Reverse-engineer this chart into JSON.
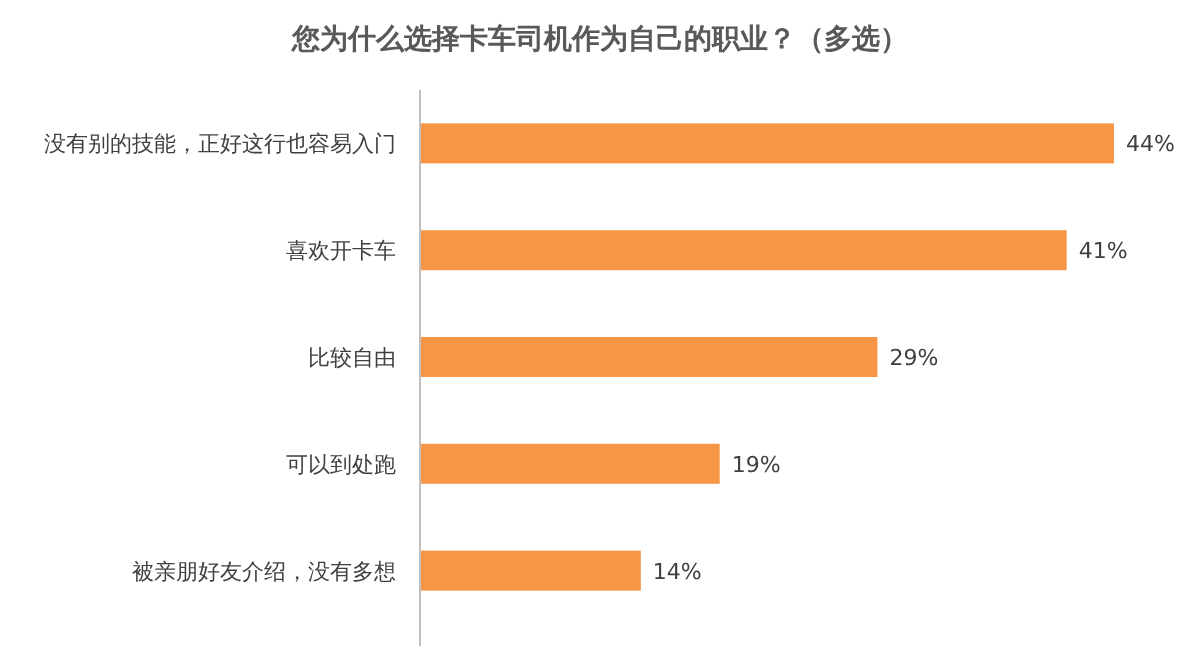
{
  "chart_data": {
    "type": "bar",
    "orientation": "horizontal",
    "title": "您为什么选择卡车司机作为自己的职业？（多选）",
    "categories": [
      "没有别的技能，正好这行也容易入门",
      "喜欢开卡车",
      "比较自由",
      "可以到处跑",
      "被亲朋好友介绍，没有多想"
    ],
    "values": [
      44,
      41,
      29,
      19,
      14
    ],
    "value_labels": [
      "44%",
      "41%",
      "29%",
      "19%",
      "14%"
    ],
    "color": "#f79646"
  }
}
